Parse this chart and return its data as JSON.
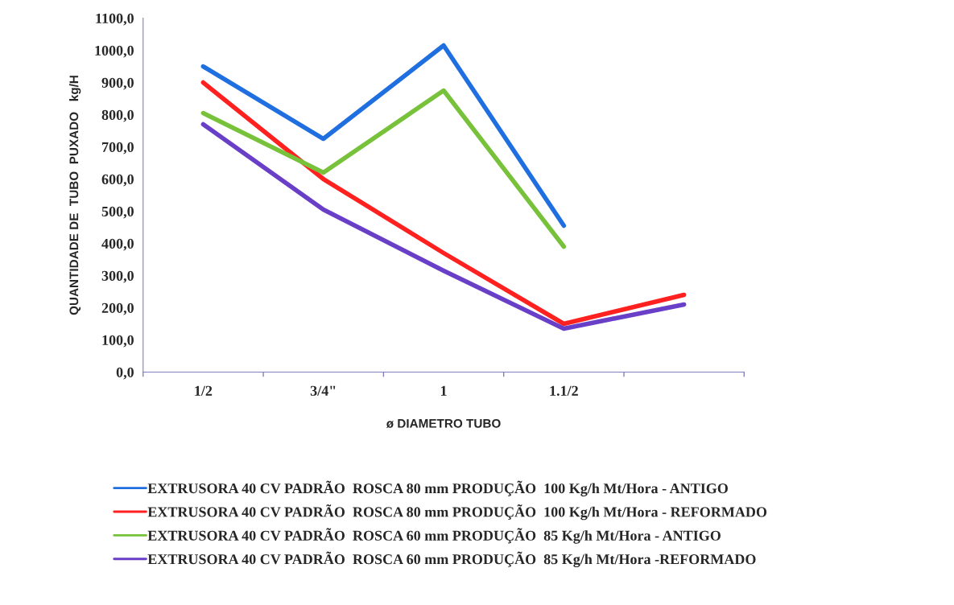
{
  "chart_data": {
    "type": "line",
    "xlabel": "ø DIAMETRO TUBO",
    "ylabel": "QUANTIDADE DE  TUBO  PUXADO   kg/H",
    "categories": [
      "1/2",
      "3/4\"",
      "1",
      "1.1/2",
      null
    ],
    "series": [
      {
        "name": "EXTRUSORA 40 CV PADRÃO  ROSCA 80 mm PRODUÇÃO  100 Kg/h Mt/Hora - ANTIGO",
        "color": "#1f6fe0",
        "values": [
          950,
          725,
          1015,
          455,
          null
        ]
      },
      {
        "name": "EXTRUSORA 40 CV PADRÃO  ROSCA 80 mm PRODUÇÃO  100 Kg/h Mt/Hora - REFORMADO",
        "color": "#ff2020",
        "values": [
          900,
          600,
          370,
          150,
          240
        ]
      },
      {
        "name": "EXTRUSORA 40 CV PADRÃO  ROSCA 60 mm PRODUÇÃO  85 Kg/h Mt/Hora - ANTIGO",
        "color": "#77c23a",
        "values": [
          805,
          620,
          875,
          390,
          null
        ]
      },
      {
        "name": "EXTRUSORA 40 CV PADRÃO  ROSCA 60 mm PRODUÇÃO  85 Kg/h Mt/Hora -REFORMADO",
        "color": "#6a3fc8",
        "values": [
          770,
          505,
          315,
          135,
          210
        ]
      }
    ],
    "ylim": [
      0,
      1100
    ],
    "yticks": [
      {
        "value": 0,
        "label": "0,0"
      },
      {
        "value": 100,
        "label": "100,0"
      },
      {
        "value": 200,
        "label": "200,0"
      },
      {
        "value": 300,
        "label": "300,0"
      },
      {
        "value": 400,
        "label": "400,0"
      },
      {
        "value": 500,
        "label": "500,0"
      },
      {
        "value": 600,
        "label": "600,0"
      },
      {
        "value": 700,
        "label": "700,0"
      },
      {
        "value": 800,
        "label": "800,0"
      },
      {
        "value": 900,
        "label": "900,0"
      },
      {
        "value": 1000,
        "label": "1000,0"
      },
      {
        "value": 1100,
        "label": "1100,0"
      }
    ],
    "grid": false,
    "legend": "bottom",
    "marker": "none",
    "line_style": "solid"
  }
}
